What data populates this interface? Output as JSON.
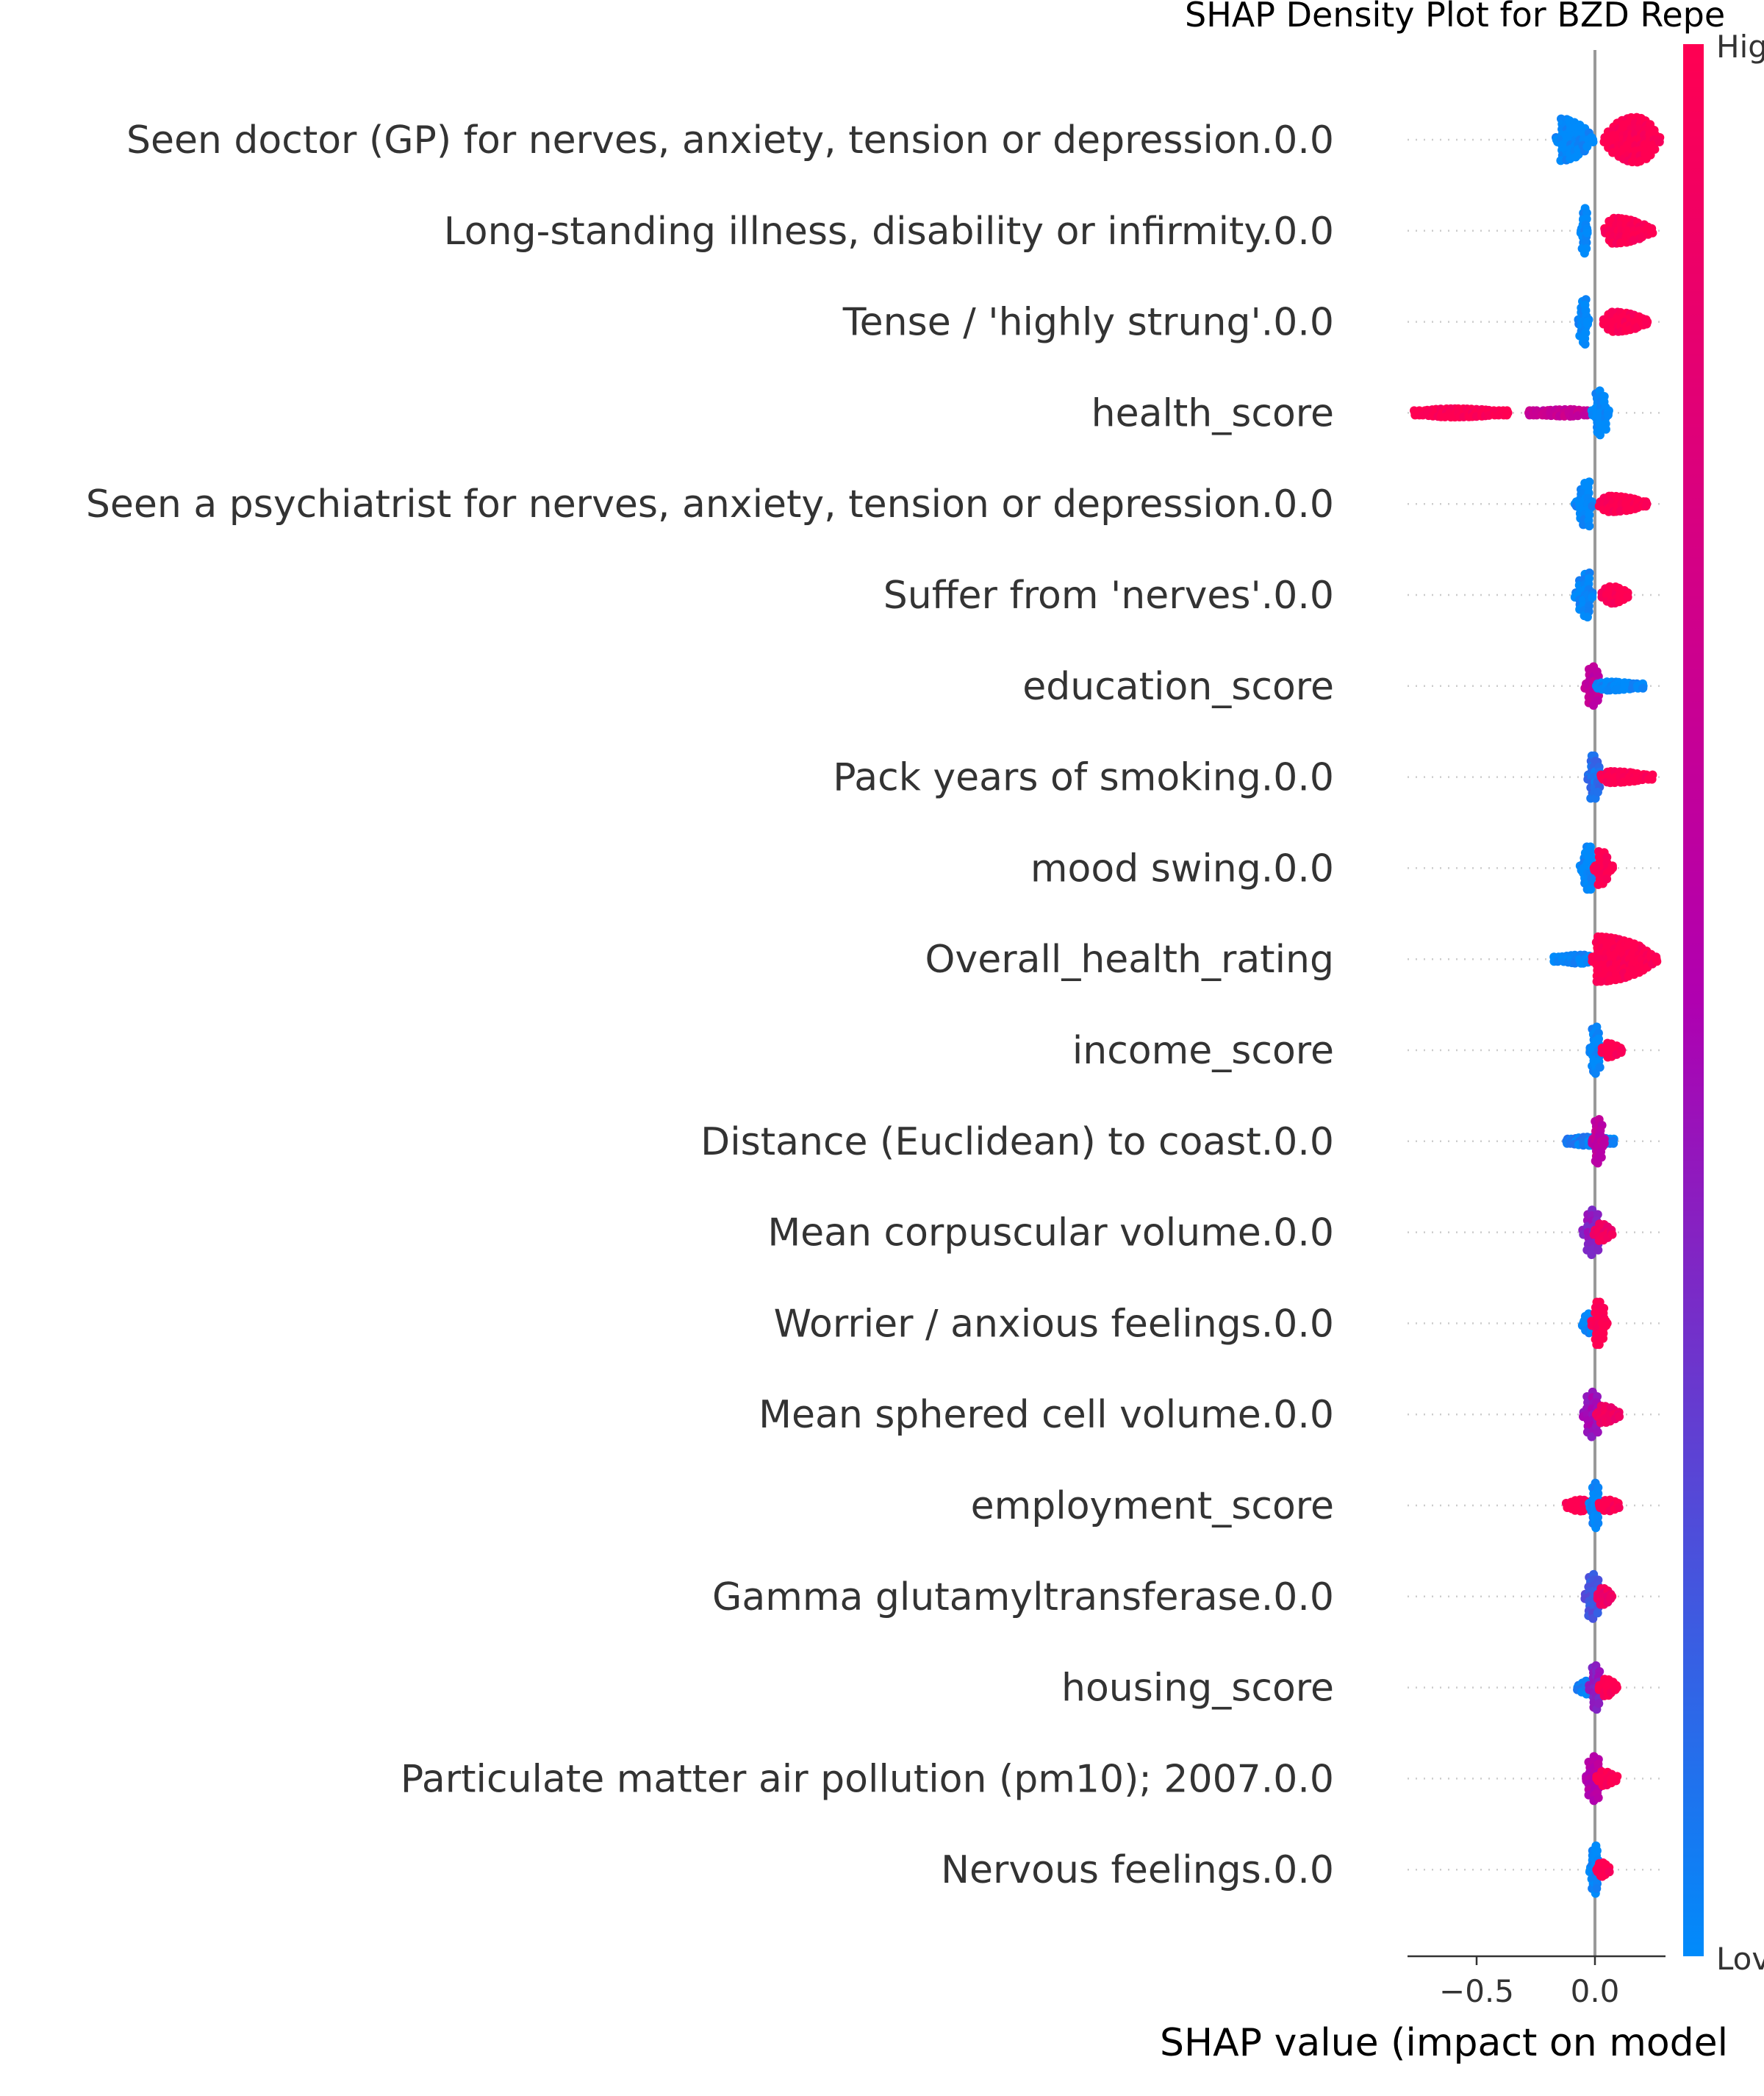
{
  "chart_data": {
    "type": "scatter",
    "subtype": "shap-beeswarm",
    "title": "SHAP Density Plot for BZD Repe",
    "xlabel": "SHAP value (impact on model",
    "xlim": [
      -0.8,
      0.3
    ],
    "xticks": [
      {
        "value": -0.5,
        "label": "−0.5"
      },
      {
        "value": 0.0,
        "label": "0.0"
      }
    ],
    "colorbar": {
      "high_label": "Hig",
      "low_label": "Lov",
      "high_color": "#ff0052",
      "mid_color": "#b000b0",
      "low_color": "#008bfb"
    },
    "features": [
      {
        "name": "Seen doctor (GP) for nerves, anxiety, tension or depression.0.0",
        "segments": [
          {
            "from": -0.16,
            "to": -0.01,
            "peak": -0.15,
            "h": 0.75,
            "c": 0.0
          },
          {
            "from": 0.04,
            "to": 0.27,
            "peak": 0.17,
            "h": 0.8,
            "c": 1.0
          }
        ]
      },
      {
        "name": "Long-standing illness, disability or infirmity.0.0",
        "segments": [
          {
            "from": -0.06,
            "to": -0.03,
            "peak": -0.045,
            "h": 0.8,
            "c": 0.0
          },
          {
            "from": 0.04,
            "to": 0.24,
            "peak": 0.08,
            "h": 0.45,
            "c": 1.0
          }
        ]
      },
      {
        "name": "Tense / 'highly strung'.0.0",
        "segments": [
          {
            "from": -0.07,
            "to": -0.03,
            "peak": -0.04,
            "h": 0.8,
            "c": 0.0
          },
          {
            "from": 0.04,
            "to": 0.22,
            "peak": 0.08,
            "h": 0.35,
            "c": 1.0
          }
        ]
      },
      {
        "name": "health_score",
        "segments": [
          {
            "from": -0.76,
            "to": -0.37,
            "peak": -0.6,
            "h": 0.15,
            "c": 1.0
          },
          {
            "from": -0.28,
            "to": -0.03,
            "peak": -0.1,
            "h": 0.12,
            "c": 0.65
          },
          {
            "from": -0.01,
            "to": 0.06,
            "peak": 0.02,
            "h": 0.8,
            "c": 0.0
          }
        ]
      },
      {
        "name": "Seen a psychiatrist for nerves, anxiety, tension or depression.0.0",
        "segments": [
          {
            "from": -0.08,
            "to": -0.01,
            "peak": -0.03,
            "h": 0.8,
            "c": 0.0
          },
          {
            "from": 0.02,
            "to": 0.22,
            "peak": 0.06,
            "h": 0.28,
            "c": 1.0
          }
        ]
      },
      {
        "name": "Suffer from 'nerves'.0.0",
        "segments": [
          {
            "from": -0.08,
            "to": -0.01,
            "peak": -0.03,
            "h": 0.8,
            "c": 0.0
          },
          {
            "from": 0.03,
            "to": 0.14,
            "peak": 0.07,
            "h": 0.3,
            "c": 1.0
          }
        ]
      },
      {
        "name": "education_score",
        "segments": [
          {
            "from": -0.04,
            "to": 0.03,
            "peak": -0.01,
            "h": 0.7,
            "c": 0.6
          },
          {
            "from": 0.01,
            "to": 0.2,
            "peak": 0.05,
            "h": 0.15,
            "c": 0.0
          }
        ]
      },
      {
        "name": "Pack years of smoking.0.0",
        "segments": [
          {
            "from": -0.03,
            "to": 0.03,
            "peak": -0.01,
            "h": 0.8,
            "c": 0.1
          },
          {
            "from": 0.03,
            "to": 0.24,
            "peak": 0.06,
            "h": 0.2,
            "c": 1.0
          }
        ]
      },
      {
        "name": "mood swing.0.0",
        "segments": [
          {
            "from": -0.06,
            "to": 0.0,
            "peak": -0.02,
            "h": 0.8,
            "c": 0.0
          },
          {
            "from": 0.0,
            "to": 0.07,
            "peak": 0.02,
            "h": 0.6,
            "c": 1.0
          }
        ]
      },
      {
        "name": "Overall_health_rating",
        "segments": [
          {
            "from": -0.17,
            "to": -0.01,
            "peak": -0.05,
            "h": 0.15,
            "c": 0.0
          },
          {
            "from": -0.01,
            "to": 0.26,
            "peak": 0.01,
            "h": 0.8,
            "c": 1.0
          }
        ]
      },
      {
        "name": "income_score",
        "segments": [
          {
            "from": -0.02,
            "to": 0.03,
            "peak": 0.0,
            "h": 0.85,
            "c": 0.0
          },
          {
            "from": 0.03,
            "to": 0.11,
            "peak": 0.05,
            "h": 0.25,
            "c": 1.0
          }
        ]
      },
      {
        "name": "Distance (Euclidean) to coast.0.0",
        "segments": [
          {
            "from": -0.12,
            "to": 0.08,
            "peak": -0.02,
            "h": 0.15,
            "c": 0.05
          },
          {
            "from": -0.01,
            "to": 0.04,
            "peak": 0.01,
            "h": 0.8,
            "c": 0.6
          }
        ]
      },
      {
        "name": "Mean corpuscular volume.0.0",
        "segments": [
          {
            "from": -0.05,
            "to": 0.03,
            "peak": -0.01,
            "h": 0.8,
            "c": 0.4
          },
          {
            "from": 0.0,
            "to": 0.07,
            "peak": 0.02,
            "h": 0.3,
            "c": 0.9
          }
        ]
      },
      {
        "name": "Worrier / anxious feelings.0.0",
        "segments": [
          {
            "from": -0.05,
            "to": 0.0,
            "peak": -0.02,
            "h": 0.35,
            "c": 0.0
          },
          {
            "from": -0.01,
            "to": 0.05,
            "peak": 0.01,
            "h": 0.8,
            "c": 1.0
          }
        ]
      },
      {
        "name": "Mean sphered cell volume.0.0",
        "segments": [
          {
            "from": -0.05,
            "to": 0.03,
            "peak": -0.01,
            "h": 0.8,
            "c": 0.45
          },
          {
            "from": 0.01,
            "to": 0.1,
            "peak": 0.03,
            "h": 0.3,
            "c": 0.9
          }
        ]
      },
      {
        "name": "employment_score",
        "segments": [
          {
            "from": -0.12,
            "to": -0.01,
            "peak": -0.06,
            "h": 0.2,
            "c": 1.0
          },
          {
            "from": -0.02,
            "to": 0.02,
            "peak": 0.0,
            "h": 0.8,
            "c": 0.0
          },
          {
            "from": 0.02,
            "to": 0.1,
            "peak": 0.05,
            "h": 0.2,
            "c": 1.0
          }
        ]
      },
      {
        "name": "Gamma glutamyltransferase.0.0",
        "segments": [
          {
            "from": -0.04,
            "to": 0.03,
            "peak": -0.01,
            "h": 0.8,
            "c": 0.2
          },
          {
            "from": 0.01,
            "to": 0.07,
            "peak": 0.03,
            "h": 0.3,
            "c": 0.9
          }
        ]
      },
      {
        "name": "housing_score",
        "segments": [
          {
            "from": -0.07,
            "to": 0.02,
            "peak": -0.02,
            "h": 0.25,
            "c": 0.05
          },
          {
            "from": -0.02,
            "to": 0.03,
            "peak": 0.0,
            "h": 0.8,
            "c": 0.4
          },
          {
            "from": 0.02,
            "to": 0.09,
            "peak": 0.04,
            "h": 0.3,
            "c": 1.0
          }
        ]
      },
      {
        "name": "Particulate matter air pollution (pm10); 2007.0.0",
        "segments": [
          {
            "from": -0.04,
            "to": 0.03,
            "peak": 0.0,
            "h": 0.8,
            "c": 0.55
          },
          {
            "from": 0.01,
            "to": 0.09,
            "peak": 0.03,
            "h": 0.25,
            "c": 1.0
          }
        ]
      },
      {
        "name": "Nervous feelings.0.0",
        "segments": [
          {
            "from": -0.02,
            "to": 0.02,
            "peak": 0.0,
            "h": 0.85,
            "c": 0.0
          },
          {
            "from": 0.01,
            "to": 0.06,
            "peak": 0.03,
            "h": 0.25,
            "c": 1.0
          }
        ]
      }
    ]
  }
}
